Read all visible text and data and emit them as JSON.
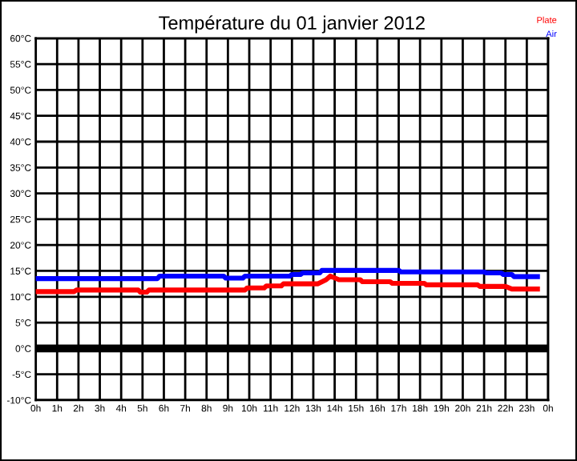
{
  "chart_data": {
    "type": "line",
    "title": "Température du 01 janvier 2012",
    "series": [
      {
        "name": "Plate",
        "color": "#ff0000",
        "x": [
          "2012-01-01T00:00",
          "2012-01-01T01:48",
          "2012-01-01T01:54",
          "2012-01-01T04:48",
          "2012-01-01T04:54",
          "2012-01-01T05:12",
          "2012-01-01T05:18",
          "2012-01-01T09:48",
          "2012-01-01T09:54",
          "2012-01-01T10:42",
          "2012-01-01T10:48",
          "2012-01-01T11:30",
          "2012-01-01T11:36",
          "2012-01-01T13:12",
          "2012-01-01T13:36",
          "2012-01-01T13:48",
          "2012-01-01T14:12",
          "2012-01-01T15:12",
          "2012-01-01T15:18",
          "2012-01-01T16:36",
          "2012-01-01T16:42",
          "2012-01-01T18:12",
          "2012-01-01T18:18",
          "2012-01-01T20:42",
          "2012-01-01T20:48",
          "2012-01-01T22:00",
          "2012-01-01T22:18",
          "2012-01-01T23:30"
        ],
        "values": [
          11,
          11,
          11.3,
          11.3,
          10.9,
          10.9,
          11.3,
          11.3,
          11.7,
          11.7,
          12.1,
          12.1,
          12.5,
          12.5,
          13.3,
          14.0,
          13.3,
          13.3,
          12.9,
          12.9,
          12.6,
          12.6,
          12.3,
          12.3,
          12.0,
          12.0,
          11.5,
          11.5
        ]
      },
      {
        "name": "Air",
        "color": "#0000ff",
        "x": [
          "2012-01-01T00:00",
          "2012-01-01T05:42",
          "2012-01-01T05:48",
          "2012-01-01T08:48",
          "2012-01-01T08:54",
          "2012-01-01T09:42",
          "2012-01-01T09:48",
          "2012-01-01T11:54",
          "2012-01-01T12:00",
          "2012-01-01T12:24",
          "2012-01-01T12:30",
          "2012-01-01T13:18",
          "2012-01-01T13:24",
          "2012-01-01T17:00",
          "2012-01-01T17:06",
          "2012-01-01T21:00",
          "2012-01-01T21:06",
          "2012-01-01T21:48",
          "2012-01-01T21:54",
          "2012-01-01T22:18",
          "2012-01-01T22:24",
          "2012-01-01T23:30"
        ],
        "values": [
          13.5,
          13.5,
          14,
          14,
          13.6,
          13.6,
          14,
          14,
          14.3,
          14.3,
          14.6,
          14.6,
          15.1,
          15.1,
          14.8,
          14.8,
          14.6,
          14.6,
          14.3,
          14.3,
          13.9,
          13.9
        ]
      }
    ],
    "xlim": [
      "2012-01-01T00:00",
      "2012-01-02T00:00"
    ],
    "xticks": [
      {
        "value": "2012-01-01T00:00",
        "label": "0h"
      },
      {
        "value": "2012-01-01T01:00",
        "label": "1h"
      },
      {
        "value": "2012-01-01T02:00",
        "label": "2h"
      },
      {
        "value": "2012-01-01T03:00",
        "label": "3h"
      },
      {
        "value": "2012-01-01T04:00",
        "label": "4h"
      },
      {
        "value": "2012-01-01T05:00",
        "label": "5h"
      },
      {
        "value": "2012-01-01T06:00",
        "label": "6h"
      },
      {
        "value": "2012-01-01T07:00",
        "label": "7h"
      },
      {
        "value": "2012-01-01T08:00",
        "label": "8h"
      },
      {
        "value": "2012-01-01T09:00",
        "label": "9h"
      },
      {
        "value": "2012-01-01T10:00",
        "label": "10h"
      },
      {
        "value": "2012-01-01T11:00",
        "label": "11h"
      },
      {
        "value": "2012-01-01T12:00",
        "label": "12h"
      },
      {
        "value": "2012-01-01T13:00",
        "label": "13h"
      },
      {
        "value": "2012-01-01T14:00",
        "label": "14h"
      },
      {
        "value": "2012-01-01T15:00",
        "label": "15h"
      },
      {
        "value": "2012-01-01T16:00",
        "label": "16h"
      },
      {
        "value": "2012-01-01T17:00",
        "label": "17h"
      },
      {
        "value": "2012-01-01T18:00",
        "label": "18h"
      },
      {
        "value": "2012-01-01T19:00",
        "label": "19h"
      },
      {
        "value": "2012-01-01T20:00",
        "label": "20h"
      },
      {
        "value": "2012-01-01T21:00",
        "label": "21h"
      },
      {
        "value": "2012-01-01T22:00",
        "label": "22h"
      },
      {
        "value": "2012-01-01T23:00",
        "label": "23h"
      },
      {
        "value": "2012-01-02T00:00",
        "label": "0h"
      }
    ],
    "ylim": [
      -10,
      60
    ],
    "yticks": [
      {
        "value": -10,
        "label": "-10°C"
      },
      {
        "value": -5,
        "label": "-5°C"
      },
      {
        "value": 0,
        "label": "0°C"
      },
      {
        "value": 5,
        "label": "5°C"
      },
      {
        "value": 10,
        "label": "10°C"
      },
      {
        "value": 15,
        "label": "15°C"
      },
      {
        "value": 20,
        "label": "20°C"
      },
      {
        "value": 25,
        "label": "25°C"
      },
      {
        "value": 30,
        "label": "30°C"
      },
      {
        "value": 35,
        "label": "35°C"
      },
      {
        "value": 40,
        "label": "40°C"
      },
      {
        "value": 45,
        "label": "45°C"
      },
      {
        "value": 50,
        "label": "50°C"
      },
      {
        "value": 55,
        "label": "55°C"
      },
      {
        "value": 60,
        "label": "60°C"
      }
    ],
    "ref_lines": [
      {
        "axis": "y",
        "value": 0,
        "color": "#000000"
      }
    ],
    "grid": true,
    "legend": "top right",
    "marker": "none",
    "line_style": "solid"
  }
}
